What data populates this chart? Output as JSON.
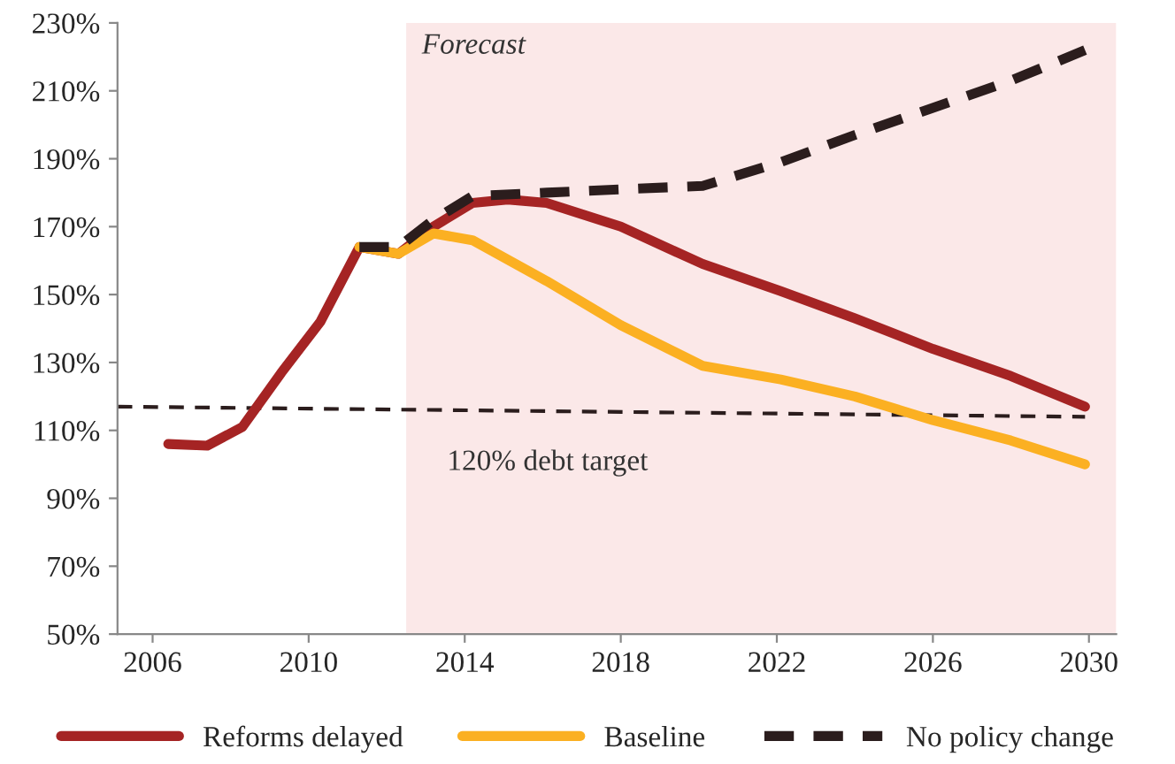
{
  "chart_data": {
    "type": "line",
    "xlim": [
      2005.1,
      2030.7
    ],
    "xticks": [
      2006,
      2010,
      2014,
      2018,
      2022,
      2026,
      2030
    ],
    "ylim": [
      50,
      230
    ],
    "yticks": [
      {
        "value": 50,
        "label": "50%"
      },
      {
        "value": 70,
        "label": "70%"
      },
      {
        "value": 90,
        "label": "90%"
      },
      {
        "value": 110,
        "label": "110%"
      },
      {
        "value": 130,
        "label": "130%"
      },
      {
        "value": 150,
        "label": "150%"
      },
      {
        "value": 170,
        "label": "170%"
      },
      {
        "value": 190,
        "label": "190%"
      },
      {
        "value": 210,
        "label": "210%"
      },
      {
        "value": 230,
        "label": "230%"
      }
    ],
    "series": [
      {
        "name": "Reforms delayed",
        "color": "#a52424",
        "line_style": "solid",
        "x": [
          2006.4,
          2007.4,
          2008.3,
          2009.3,
          2010.3,
          2011.3,
          2012.3,
          2013.2,
          2014.2,
          2015.1,
          2016.1,
          2018,
          2020.1,
          2022.1,
          2024,
          2026,
          2028,
          2029.9
        ],
        "values": [
          106,
          105.5,
          111,
          127,
          142,
          164,
          162,
          170,
          177,
          178,
          177,
          170,
          159,
          151,
          143,
          134,
          126,
          117
        ]
      },
      {
        "name": "Baseline",
        "color": "#fbb022",
        "line_style": "solid",
        "x": [
          2011.3,
          2012.3,
          2013.2,
          2014.2,
          2016.1,
          2018,
          2020.1,
          2022.1,
          2024,
          2026,
          2028,
          2029.9
        ],
        "values": [
          164,
          162,
          168,
          166,
          154,
          141,
          129,
          125,
          120,
          113,
          107,
          100
        ]
      },
      {
        "name": "No policy change",
        "color": "#2b1d1d",
        "line_style": "dashed",
        "x": [
          2011.3,
          2012.3,
          2013.2,
          2014.2,
          2016.1,
          2018,
          2020.1,
          2022.1,
          2024,
          2026,
          2028,
          2029.9
        ],
        "values": [
          164,
          164,
          172,
          179,
          180,
          181,
          182,
          189,
          197,
          205,
          213,
          222
        ]
      },
      {
        "color": "#2b1d1d",
        "line_style": "dashed",
        "x": [
          2005.1,
          2029.9
        ],
        "values": [
          117,
          114
        ]
      }
    ],
    "bands": [
      {
        "axis": "x",
        "from": 2012.5,
        "to": 2030.7,
        "label": "Forecast",
        "color": "#fbe8e8"
      }
    ],
    "annotations": [
      "120% debt target"
    ],
    "grid": false,
    "legend": "bottom"
  }
}
